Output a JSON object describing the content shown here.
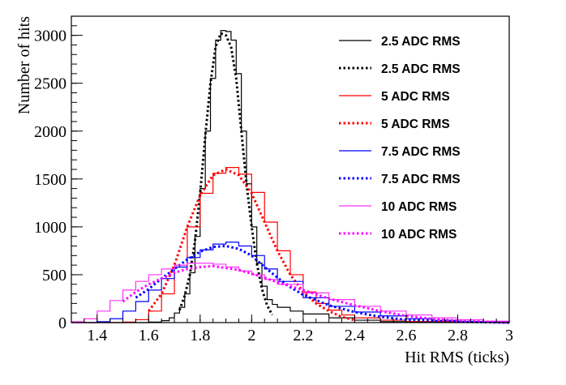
{
  "chart_data": {
    "type": "line",
    "title": "",
    "xlabel": "Hit RMS (ticks)",
    "ylabel": "Number of hits",
    "xlim": [
      1.3,
      3.0
    ],
    "ylim": [
      0,
      3200
    ],
    "xticks": [
      1.4,
      1.6,
      1.8,
      2.0,
      2.2,
      2.4,
      2.6,
      2.8,
      3.0
    ],
    "xtick_labels": [
      "1.4",
      "1.6",
      "1.8",
      "2",
      "2.2",
      "2.4",
      "2.6",
      "2.8",
      "3"
    ],
    "yticks": [
      0,
      500,
      1000,
      1500,
      2000,
      2500,
      3000
    ],
    "ytick_labels": [
      "0",
      "500",
      "1000",
      "1500",
      "2000",
      "2500",
      "3000"
    ],
    "grid": false,
    "legend_position": "top-right",
    "series": [
      {
        "name": "2.5 ADC RMS",
        "style": "solid-step",
        "color": "#000000",
        "x": [
          1.3,
          1.6,
          1.65,
          1.68,
          1.7,
          1.72,
          1.74,
          1.76,
          1.78,
          1.8,
          1.82,
          1.84,
          1.86,
          1.88,
          1.9,
          1.92,
          1.94,
          1.96,
          1.98,
          2.0,
          2.02,
          2.04,
          2.06,
          2.08,
          2.1,
          2.15,
          2.2,
          2.3,
          2.4,
          2.5,
          2.6,
          2.8,
          3.0
        ],
        "y": [
          0,
          5,
          20,
          50,
          100,
          160,
          300,
          520,
          900,
          1400,
          2000,
          2550,
          2950,
          3050,
          3040,
          2950,
          2600,
          2000,
          1450,
          1000,
          620,
          380,
          240,
          190,
          160,
          120,
          90,
          50,
          25,
          10,
          5,
          2,
          0
        ]
      },
      {
        "name": "2.5 ADC RMS",
        "style": "dotted-curve",
        "color": "#000000",
        "x": [
          1.72,
          1.74,
          1.76,
          1.78,
          1.8,
          1.82,
          1.84,
          1.86,
          1.88,
          1.9,
          1.92,
          1.94,
          1.96,
          1.98,
          2.0,
          2.02,
          2.04,
          2.06,
          2.08
        ],
        "y": [
          130,
          280,
          500,
          850,
          1350,
          1950,
          2500,
          2880,
          3020,
          3000,
          2880,
          2550,
          2000,
          1450,
          1000,
          620,
          350,
          180,
          80
        ]
      },
      {
        "name": "5 ADC RMS",
        "style": "solid-step",
        "color": "#ff0000",
        "x": [
          1.3,
          1.5,
          1.55,
          1.6,
          1.65,
          1.7,
          1.75,
          1.8,
          1.85,
          1.9,
          1.95,
          2.0,
          2.05,
          2.1,
          2.15,
          2.2,
          2.25,
          2.3,
          2.35,
          2.4,
          2.5,
          2.6,
          2.8,
          3.0
        ],
        "y": [
          0,
          5,
          30,
          120,
          300,
          600,
          1000,
          1350,
          1560,
          1620,
          1550,
          1360,
          1050,
          750,
          500,
          320,
          200,
          130,
          80,
          50,
          25,
          12,
          5,
          0
        ]
      },
      {
        "name": "5 ADC RMS",
        "style": "dotted-curve",
        "color": "#ff0000",
        "x": [
          1.6,
          1.65,
          1.7,
          1.75,
          1.8,
          1.85,
          1.9,
          1.95,
          2.0,
          2.05,
          2.1,
          2.15,
          2.2,
          2.25,
          2.3,
          2.35,
          2.4
        ],
        "y": [
          120,
          300,
          600,
          1000,
          1330,
          1540,
          1600,
          1540,
          1350,
          1050,
          750,
          500,
          320,
          200,
          120,
          60,
          25
        ]
      },
      {
        "name": "7.5 ADC RMS",
        "style": "solid-step",
        "color": "#0000ff",
        "x": [
          1.3,
          1.4,
          1.45,
          1.5,
          1.55,
          1.6,
          1.65,
          1.7,
          1.75,
          1.8,
          1.85,
          1.9,
          1.95,
          2.0,
          2.05,
          2.1,
          2.2,
          2.3,
          2.4,
          2.5,
          2.6,
          2.7,
          2.8,
          3.0
        ],
        "y": [
          0,
          10,
          40,
          120,
          220,
          340,
          460,
          580,
          680,
          760,
          820,
          840,
          800,
          700,
          560,
          430,
          260,
          170,
          110,
          70,
          40,
          25,
          10,
          0
        ]
      },
      {
        "name": "7.5 ADC RMS",
        "style": "dotted-curve",
        "color": "#0000ff",
        "x": [
          1.55,
          1.6,
          1.65,
          1.7,
          1.75,
          1.8,
          1.85,
          1.9,
          1.95,
          2.0,
          2.05,
          2.1,
          2.15,
          2.2,
          2.3,
          2.4,
          2.5,
          2.6,
          2.8,
          3.0
        ],
        "y": [
          260,
          350,
          460,
          560,
          660,
          740,
          790,
          800,
          770,
          700,
          580,
          470,
          370,
          290,
          180,
          110,
          60,
          30,
          8,
          0
        ]
      },
      {
        "name": "10 ADC RMS",
        "style": "solid-step",
        "color": "#ff33ff",
        "x": [
          1.3,
          1.35,
          1.4,
          1.45,
          1.5,
          1.55,
          1.6,
          1.65,
          1.7,
          1.75,
          1.8,
          1.85,
          1.9,
          1.95,
          2.0,
          2.05,
          2.1,
          2.2,
          2.3,
          2.4,
          2.5,
          2.6,
          2.7,
          2.8,
          2.9,
          3.0
        ],
        "y": [
          10,
          40,
          120,
          230,
          340,
          430,
          500,
          560,
          600,
          620,
          620,
          610,
          580,
          540,
          500,
          450,
          400,
          310,
          240,
          170,
          120,
          80,
          50,
          30,
          15,
          10
        ]
      },
      {
        "name": "10 ADC RMS",
        "style": "dotted-curve",
        "color": "#ff00ff",
        "x": [
          1.5,
          1.55,
          1.6,
          1.65,
          1.7,
          1.75,
          1.8,
          1.85,
          1.9,
          1.95,
          2.0,
          2.05,
          2.1,
          2.2,
          2.3,
          2.4,
          2.5,
          2.6,
          2.7,
          2.8,
          3.0
        ],
        "y": [
          220,
          320,
          400,
          460,
          520,
          560,
          580,
          590,
          570,
          550,
          510,
          470,
          420,
          340,
          250,
          180,
          120,
          70,
          40,
          20,
          0
        ]
      }
    ]
  }
}
